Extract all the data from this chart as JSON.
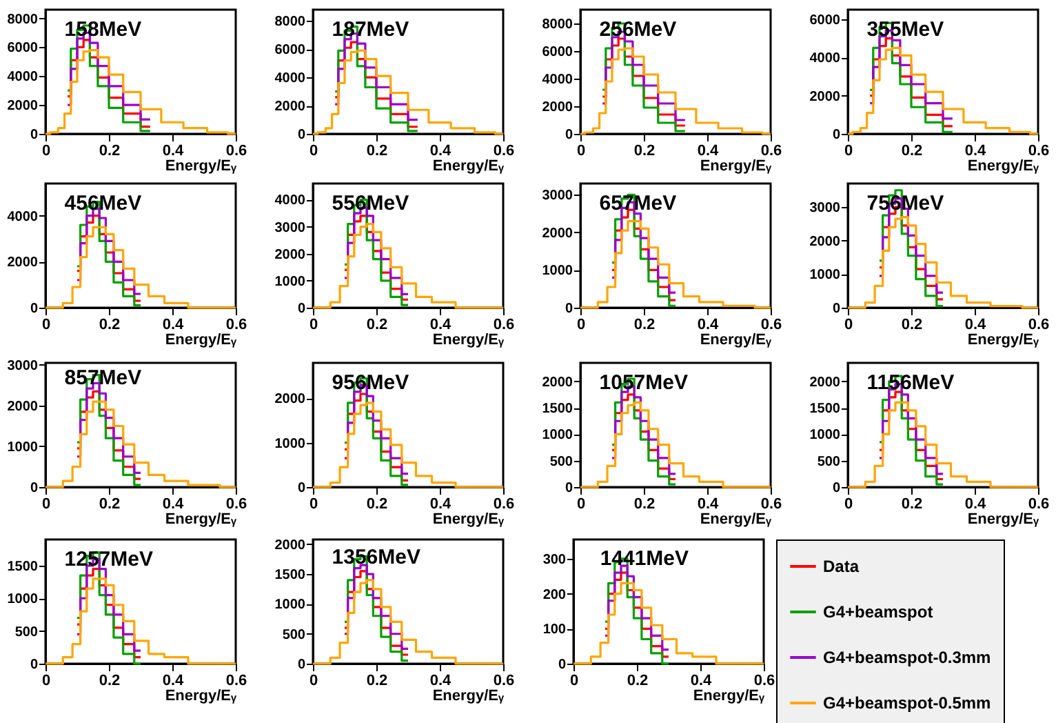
{
  "chart_data": [
    {
      "type": "step",
      "title": "158MeV",
      "xlabel": "Energy/Eᵧ",
      "xlim": [
        0,
        0.6
      ],
      "xticks": [
        0,
        0.2,
        0.4,
        0.6
      ],
      "ylim": [
        0,
        8600
      ],
      "yticks": [
        0,
        2000,
        4000,
        6000,
        8000
      ],
      "marker": "none",
      "x": [
        0.07,
        0.09,
        0.11,
        0.13,
        0.15,
        0.18,
        0.22,
        0.27,
        0.33
      ],
      "series": [
        {
          "color": "#ff0000",
          "values": [
            2600,
            5100,
            6000,
            6500,
            5300,
            3900,
            2500,
            1400,
            500
          ]
        },
        {
          "color": "#00a000",
          "values": [
            3000,
            5900,
            7200,
            7500,
            4700,
            3300,
            1800,
            800,
            200
          ]
        },
        {
          "color": "#9900cc",
          "values": [
            2000,
            4500,
            6600,
            7000,
            6300,
            4700,
            3300,
            2000,
            1000
          ]
        },
        {
          "color": "#ffa500",
          "x": [
            0,
            0.03,
            0.05,
            0.07,
            0.09,
            0.11,
            0.13,
            0.15,
            0.18,
            0.22,
            0.27,
            0.33,
            0.4,
            0.47,
            0.55,
            0.6
          ],
          "values": [
            0,
            100,
            400,
            1400,
            3600,
            5100,
            5700,
            5800,
            5300,
            4100,
            2900,
            1700,
            800,
            400,
            100,
            0
          ]
        }
      ]
    },
    {
      "type": "step",
      "title": "187MeV",
      "xlabel": "Energy/Eᵧ",
      "xlim": [
        0,
        0.6
      ],
      "xticks": [
        0,
        0.2,
        0.4,
        0.6
      ],
      "ylim": [
        0,
        8800
      ],
      "yticks": [
        0,
        2000,
        4000,
        6000,
        8000
      ],
      "marker": "none",
      "x": [
        0.07,
        0.09,
        0.11,
        0.13,
        0.15,
        0.18,
        0.22,
        0.27,
        0.33
      ],
      "series": [
        {
          "color": "#ff0000",
          "values": [
            2600,
            5200,
            6100,
            6500,
            5300,
            4000,
            2500,
            1400,
            500
          ]
        },
        {
          "color": "#00a000",
          "values": [
            3000,
            5900,
            7300,
            7600,
            4800,
            3300,
            1800,
            800,
            200
          ]
        },
        {
          "color": "#9900cc",
          "values": [
            2100,
            4600,
            6700,
            7100,
            6400,
            4700,
            3300,
            2100,
            1000
          ]
        },
        {
          "color": "#ffa500",
          "x": [
            0,
            0.03,
            0.05,
            0.07,
            0.09,
            0.11,
            0.13,
            0.15,
            0.18,
            0.22,
            0.27,
            0.33,
            0.4,
            0.47,
            0.55,
            0.6
          ],
          "values": [
            0,
            100,
            400,
            1400,
            3600,
            5200,
            5800,
            5900,
            5300,
            4100,
            2900,
            1700,
            800,
            400,
            100,
            0
          ]
        }
      ]
    },
    {
      "type": "step",
      "title": "256MeV",
      "xlabel": "Energy/Eᵧ",
      "xlim": [
        0,
        0.6
      ],
      "xticks": [
        0,
        0.2,
        0.4,
        0.6
      ],
      "ylim": [
        0,
        9000
      ],
      "yticks": [
        0,
        2000,
        4000,
        6000,
        8000
      ],
      "marker": "none",
      "x": [
        0.07,
        0.09,
        0.11,
        0.13,
        0.15,
        0.18,
        0.22,
        0.27,
        0.33
      ],
      "series": [
        {
          "color": "#ff0000",
          "values": [
            2700,
            5400,
            6400,
            6900,
            5600,
            4200,
            2600,
            1400,
            600
          ]
        },
        {
          "color": "#00a000",
          "values": [
            3200,
            6200,
            7700,
            8000,
            5000,
            3500,
            1900,
            800,
            200
          ]
        },
        {
          "color": "#9900cc",
          "values": [
            2200,
            4800,
            7000,
            7400,
            6700,
            5000,
            3500,
            2200,
            1000
          ]
        },
        {
          "color": "#ffa500",
          "x": [
            0,
            0.03,
            0.05,
            0.07,
            0.09,
            0.11,
            0.13,
            0.15,
            0.18,
            0.22,
            0.27,
            0.33,
            0.4,
            0.47,
            0.55,
            0.6
          ],
          "values": [
            0,
            100,
            400,
            1500,
            3800,
            5400,
            6100,
            6200,
            5600,
            4300,
            3000,
            1800,
            800,
            400,
            100,
            0
          ]
        }
      ]
    },
    {
      "type": "step",
      "title": "355MeV",
      "xlabel": "Energy/Eᵧ",
      "xlim": [
        0,
        0.6
      ],
      "xticks": [
        0,
        0.2,
        0.4,
        0.6
      ],
      "ylim": [
        0,
        6500
      ],
      "yticks": [
        0,
        2000,
        4000,
        6000
      ],
      "marker": "none",
      "x": [
        0.07,
        0.09,
        0.11,
        0.13,
        0.15,
        0.18,
        0.22,
        0.27,
        0.33
      ],
      "series": [
        {
          "color": "#ff0000",
          "values": [
            2000,
            3900,
            4600,
            5000,
            4100,
            3000,
            1900,
            1000,
            400
          ]
        },
        {
          "color": "#00a000",
          "values": [
            2300,
            4500,
            5600,
            5800,
            3700,
            2600,
            1400,
            600,
            100
          ]
        },
        {
          "color": "#9900cc",
          "values": [
            1600,
            3500,
            5100,
            5400,
            4900,
            3600,
            2600,
            1600,
            800
          ]
        },
        {
          "color": "#ffa500",
          "x": [
            0,
            0.03,
            0.05,
            0.07,
            0.09,
            0.11,
            0.13,
            0.15,
            0.18,
            0.22,
            0.27,
            0.33,
            0.4,
            0.47,
            0.55,
            0.6
          ],
          "values": [
            0,
            100,
            300,
            1100,
            2800,
            3900,
            4400,
            4500,
            4100,
            3100,
            2200,
            1300,
            600,
            300,
            100,
            0
          ]
        }
      ]
    },
    {
      "type": "step",
      "title": "456MeV",
      "xlabel": "Energy/Eᵧ",
      "xlim": [
        0,
        0.6
      ],
      "xticks": [
        0,
        0.2,
        0.4,
        0.6
      ],
      "ylim": [
        0,
        5400
      ],
      "yticks": [
        0,
        2000,
        4000
      ],
      "marker": "none",
      "x": [
        0.1,
        0.12,
        0.14,
        0.16,
        0.18,
        0.2,
        0.23,
        0.26,
        0.3
      ],
      "series": [
        {
          "color": "#ff0000",
          "values": [
            1600,
            3100,
            3700,
            4000,
            3200,
            2400,
            1500,
            800,
            300
          ]
        },
        {
          "color": "#00a000",
          "values": [
            1800,
            3600,
            4400,
            4600,
            2900,
            2000,
            1100,
            500,
            100
          ]
        },
        {
          "color": "#9900cc",
          "values": [
            1200,
            2800,
            4000,
            4300,
            3900,
            2900,
            2000,
            1200,
            600
          ]
        },
        {
          "color": "#ffa500",
          "x": [
            0,
            0.04,
            0.07,
            0.1,
            0.12,
            0.14,
            0.16,
            0.18,
            0.2,
            0.23,
            0.26,
            0.3,
            0.35,
            0.4,
            0.5,
            0.6
          ],
          "values": [
            0,
            0,
            200,
            900,
            2200,
            3100,
            3500,
            3500,
            3200,
            2500,
            1700,
            1000,
            500,
            200,
            0,
            0
          ]
        }
      ]
    },
    {
      "type": "step",
      "title": "556MeV",
      "xlabel": "Energy/Eᵧ",
      "xlim": [
        0,
        0.6
      ],
      "xticks": [
        0,
        0.2,
        0.4,
        0.6
      ],
      "ylim": [
        0,
        4600
      ],
      "yticks": [
        0,
        1000,
        2000,
        3000,
        4000
      ],
      "marker": "none",
      "x": [
        0.1,
        0.12,
        0.14,
        0.16,
        0.18,
        0.2,
        0.23,
        0.26,
        0.3
      ],
      "series": [
        {
          "color": "#ff0000",
          "values": [
            1400,
            2700,
            3200,
            3400,
            2800,
            2100,
            1300,
            700,
            300
          ]
        },
        {
          "color": "#00a000",
          "values": [
            1600,
            3100,
            3800,
            4000,
            2500,
            1800,
            1000,
            400,
            100
          ]
        },
        {
          "color": "#9900cc",
          "values": [
            1100,
            2400,
            3500,
            3700,
            3400,
            2500,
            1800,
            1100,
            500
          ]
        },
        {
          "color": "#ffa500",
          "x": [
            0,
            0.04,
            0.07,
            0.1,
            0.12,
            0.14,
            0.16,
            0.18,
            0.2,
            0.23,
            0.26,
            0.3,
            0.35,
            0.4,
            0.5,
            0.6
          ],
          "values": [
            0,
            0,
            200,
            800,
            1900,
            2700,
            3000,
            3100,
            2800,
            2200,
            1500,
            900,
            400,
            200,
            0,
            0
          ]
        }
      ]
    },
    {
      "type": "step",
      "title": "657MeV",
      "xlabel": "Energy/Eᵧ",
      "xlim": [
        0,
        0.6
      ],
      "xticks": [
        0,
        0.2,
        0.4,
        0.6
      ],
      "ylim": [
        0,
        3300
      ],
      "yticks": [
        0,
        1000,
        2000,
        3000
      ],
      "marker": "none",
      "x": [
        0.1,
        0.12,
        0.14,
        0.16,
        0.18,
        0.2,
        0.23,
        0.26,
        0.3
      ],
      "series": [
        {
          "color": "#ff0000",
          "values": [
            1000,
            2050,
            2400,
            2600,
            2100,
            1550,
            1000,
            550,
            200
          ]
        },
        {
          "color": "#00a000",
          "values": [
            1200,
            2350,
            2900,
            3000,
            1900,
            1300,
            700,
            300,
            50
          ]
        },
        {
          "color": "#9900cc",
          "values": [
            800,
            1800,
            2650,
            2800,
            2500,
            1850,
            1300,
            800,
            400
          ]
        },
        {
          "color": "#ffa500",
          "x": [
            0,
            0.04,
            0.07,
            0.1,
            0.12,
            0.14,
            0.16,
            0.18,
            0.2,
            0.23,
            0.26,
            0.3,
            0.35,
            0.4,
            0.5,
            0.6
          ],
          "values": [
            0,
            0,
            150,
            550,
            1450,
            2050,
            2300,
            2300,
            2100,
            1600,
            1150,
            650,
            300,
            150,
            50,
            0
          ]
        }
      ]
    },
    {
      "type": "step",
      "title": "756MeV",
      "xlabel": "Energy/Eᵧ",
      "xlim": [
        0,
        0.6
      ],
      "xticks": [
        0,
        0.2,
        0.4,
        0.6
      ],
      "ylim": [
        0,
        3700
      ],
      "yticks": [
        0,
        1000,
        2000,
        3000
      ],
      "marker": "none",
      "x": [
        0.1,
        0.12,
        0.14,
        0.16,
        0.18,
        0.2,
        0.23,
        0.26,
        0.3
      ],
      "series": [
        {
          "color": "#ff0000",
          "values": [
            1200,
            2400,
            2800,
            3000,
            2450,
            1800,
            1150,
            650,
            250
          ]
        },
        {
          "color": "#00a000",
          "values": [
            1400,
            2750,
            3350,
            3500,
            2200,
            1550,
            850,
            350,
            50
          ]
        },
        {
          "color": "#9900cc",
          "values": [
            950,
            2100,
            3100,
            3250,
            2950,
            2150,
            1550,
            950,
            450
          ]
        },
        {
          "color": "#ffa500",
          "x": [
            0,
            0.04,
            0.07,
            0.1,
            0.12,
            0.14,
            0.16,
            0.18,
            0.2,
            0.23,
            0.26,
            0.3,
            0.35,
            0.4,
            0.5,
            0.6
          ],
          "values": [
            0,
            0,
            150,
            650,
            1700,
            2400,
            2650,
            2700,
            2450,
            1900,
            1350,
            750,
            350,
            150,
            50,
            0
          ]
        }
      ]
    },
    {
      "type": "step",
      "title": "857MeV",
      "xlabel": "Energy/Eᵧ",
      "xlim": [
        0,
        0.6
      ],
      "xticks": [
        0,
        0.2,
        0.4,
        0.6
      ],
      "ylim": [
        0,
        3050
      ],
      "yticks": [
        0,
        1000,
        2000,
        3000
      ],
      "marker": "none",
      "x": [
        0.1,
        0.12,
        0.14,
        0.16,
        0.18,
        0.2,
        0.23,
        0.26,
        0.3
      ],
      "series": [
        {
          "color": "#ff0000",
          "values": [
            950,
            1850,
            2200,
            2350,
            1900,
            1450,
            900,
            500,
            200
          ]
        },
        {
          "color": "#00a000",
          "values": [
            1100,
            2150,
            2650,
            2750,
            1750,
            1200,
            650,
            300,
            50
          ]
        },
        {
          "color": "#9900cc",
          "values": [
            750,
            1650,
            2420,
            2550,
            2300,
            1700,
            1200,
            750,
            350
          ]
        },
        {
          "color": "#ffa500",
          "x": [
            0,
            0.04,
            0.07,
            0.1,
            0.12,
            0.14,
            0.16,
            0.18,
            0.2,
            0.23,
            0.26,
            0.3,
            0.35,
            0.4,
            0.5,
            0.6
          ],
          "values": [
            0,
            0,
            150,
            500,
            1300,
            1850,
            2100,
            2100,
            1900,
            1500,
            1050,
            600,
            300,
            150,
            50,
            0
          ]
        }
      ]
    },
    {
      "type": "step",
      "title": "956MeV",
      "xlabel": "Energy/Eᵧ",
      "xlim": [
        0,
        0.6
      ],
      "xticks": [
        0,
        0.2,
        0.4,
        0.6
      ],
      "ylim": [
        0,
        2800
      ],
      "yticks": [
        0,
        1000,
        2000
      ],
      "marker": "none",
      "x": [
        0.1,
        0.12,
        0.14,
        0.16,
        0.18,
        0.2,
        0.23,
        0.26,
        0.3
      ],
      "series": [
        {
          "color": "#ff0000",
          "values": [
            850,
            1650,
            1950,
            2100,
            1700,
            1250,
            800,
            450,
            150
          ]
        },
        {
          "color": "#00a000",
          "values": [
            1000,
            1900,
            2350,
            2450,
            1550,
            1100,
            600,
            250,
            50
          ]
        },
        {
          "color": "#9900cc",
          "values": [
            650,
            1450,
            2150,
            2300,
            2050,
            1500,
            1100,
            650,
            300
          ]
        },
        {
          "color": "#ffa500",
          "x": [
            0,
            0.04,
            0.07,
            0.1,
            0.12,
            0.14,
            0.16,
            0.18,
            0.2,
            0.23,
            0.26,
            0.3,
            0.35,
            0.4,
            0.5,
            0.6
          ],
          "values": [
            0,
            0,
            100,
            450,
            1200,
            1650,
            1850,
            1900,
            1700,
            1300,
            950,
            550,
            250,
            100,
            0,
            0
          ]
        }
      ]
    },
    {
      "type": "step",
      "title": "1057MeV",
      "xlabel": "Energy/Eᵧ",
      "xlim": [
        0,
        0.6
      ],
      "xticks": [
        0,
        0.2,
        0.4,
        0.6
      ],
      "ylim": [
        0,
        2350
      ],
      "yticks": [
        0,
        500,
        1000,
        1500,
        2000
      ],
      "marker": "none",
      "x": [
        0.1,
        0.12,
        0.14,
        0.16,
        0.18,
        0.2,
        0.23,
        0.26,
        0.3
      ],
      "series": [
        {
          "color": "#ff0000",
          "values": [
            700,
            1400,
            1650,
            1750,
            1450,
            1050,
            700,
            350,
            150
          ]
        },
        {
          "color": "#00a000",
          "values": [
            800,
            1600,
            1950,
            2050,
            1300,
            900,
            500,
            200,
            50
          ]
        },
        {
          "color": "#9900cc",
          "values": [
            550,
            1250,
            1800,
            1900,
            1700,
            1250,
            900,
            550,
            250
          ]
        },
        {
          "color": "#ffa500",
          "x": [
            0,
            0.04,
            0.07,
            0.1,
            0.12,
            0.14,
            0.16,
            0.18,
            0.2,
            0.23,
            0.26,
            0.3,
            0.35,
            0.4,
            0.5,
            0.6
          ],
          "values": [
            0,
            0,
            100,
            400,
            1000,
            1400,
            1550,
            1600,
            1450,
            1100,
            800,
            450,
            200,
            100,
            0,
            0
          ]
        }
      ]
    },
    {
      "type": "step",
      "title": "1156MeV",
      "xlabel": "Energy/Eᵧ",
      "xlim": [
        0,
        0.6
      ],
      "xticks": [
        0,
        0.2,
        0.4,
        0.6
      ],
      "ylim": [
        0,
        2350
      ],
      "yticks": [
        0,
        500,
        1000,
        1500,
        2000
      ],
      "marker": "none",
      "x": [
        0.1,
        0.12,
        0.14,
        0.16,
        0.18,
        0.2,
        0.23,
        0.26,
        0.3
      ],
      "series": [
        {
          "color": "#ff0000",
          "values": [
            700,
            1450,
            1700,
            1800,
            1450,
            1100,
            700,
            400,
            150
          ]
        },
        {
          "color": "#00a000",
          "values": [
            850,
            1650,
            2000,
            2100,
            1300,
            900,
            500,
            200,
            50
          ]
        },
        {
          "color": "#9900cc",
          "values": [
            550,
            1250,
            1850,
            1950,
            1750,
            1300,
            900,
            550,
            250
          ]
        },
        {
          "color": "#ffa500",
          "x": [
            0,
            0.04,
            0.07,
            0.1,
            0.12,
            0.14,
            0.16,
            0.18,
            0.2,
            0.23,
            0.26,
            0.3,
            0.35,
            0.4,
            0.5,
            0.6
          ],
          "values": [
            0,
            0,
            100,
            400,
            1000,
            1450,
            1600,
            1600,
            1450,
            1150,
            800,
            450,
            200,
            100,
            0,
            0
          ]
        }
      ]
    },
    {
      "type": "step",
      "title": "1257MeV",
      "xlabel": "Energy/Eᵧ",
      "xlim": [
        0,
        0.6
      ],
      "xticks": [
        0,
        0.2,
        0.4,
        0.6
      ],
      "ylim": [
        0,
        1900
      ],
      "yticks": [
        0,
        500,
        1000,
        1500
      ],
      "marker": "none",
      "x": [
        0.1,
        0.12,
        0.14,
        0.16,
        0.18,
        0.2,
        0.23,
        0.26,
        0.3
      ],
      "series": [
        {
          "color": "#ff0000",
          "values": [
            600,
            1150,
            1350,
            1450,
            1200,
            900,
            550,
            300,
            100
          ]
        },
        {
          "color": "#00a000",
          "values": [
            700,
            1350,
            1650,
            1700,
            1050,
            750,
            400,
            150,
            0
          ]
        },
        {
          "color": "#9900cc",
          "values": [
            450,
            1000,
            1500,
            1600,
            1450,
            1050,
            750,
            450,
            200
          ]
        },
        {
          "color": "#ffa500",
          "x": [
            0,
            0.04,
            0.07,
            0.1,
            0.12,
            0.14,
            0.16,
            0.18,
            0.2,
            0.23,
            0.26,
            0.3,
            0.35,
            0.4,
            0.5,
            0.6
          ],
          "values": [
            0,
            0,
            100,
            300,
            800,
            1150,
            1300,
            1300,
            1200,
            900,
            650,
            350,
            150,
            100,
            0,
            0
          ]
        }
      ]
    },
    {
      "type": "step",
      "title": "1356MeV",
      "xlabel": "Energy/Eᵧ",
      "xlim": [
        0,
        0.6
      ],
      "xticks": [
        0,
        0.2,
        0.4,
        0.6
      ],
      "ylim": [
        0,
        2080
      ],
      "yticks": [
        0,
        500,
        1000,
        1500,
        2000
      ],
      "marker": "none",
      "x": [
        0.1,
        0.12,
        0.14,
        0.16,
        0.18,
        0.2,
        0.23,
        0.26,
        0.3
      ],
      "series": [
        {
          "color": "#ff0000",
          "values": [
            600,
            1200,
            1450,
            1550,
            1250,
            950,
            600,
            300,
            150
          ]
        },
        {
          "color": "#00a000",
          "values": [
            700,
            1400,
            1750,
            1800,
            1150,
            800,
            450,
            200,
            50
          ]
        },
        {
          "color": "#9900cc",
          "values": [
            500,
            1100,
            1600,
            1650,
            1500,
            1100,
            800,
            500,
            250
          ]
        },
        {
          "color": "#ffa500",
          "x": [
            0,
            0.04,
            0.07,
            0.1,
            0.12,
            0.14,
            0.16,
            0.18,
            0.2,
            0.23,
            0.26,
            0.3,
            0.35,
            0.4,
            0.5,
            0.6
          ],
          "values": [
            0,
            0,
            100,
            350,
            850,
            1200,
            1350,
            1400,
            1250,
            950,
            700,
            400,
            200,
            100,
            0,
            0
          ]
        }
      ]
    },
    {
      "type": "step",
      "title": "1441MeV",
      "xlabel": "Energy/Eᵧ",
      "xlim": [
        0,
        0.6
      ],
      "xticks": [
        0,
        0.2,
        0.4,
        0.6
      ],
      "ylim": [
        0,
        355
      ],
      "yticks": [
        0,
        100,
        200,
        300
      ],
      "marker": "none",
      "legend": "right",
      "x": [
        0.1,
        0.12,
        0.14,
        0.16,
        0.18,
        0.2,
        0.23,
        0.26,
        0.3
      ],
      "series": [
        {
          "name": "Data",
          "color": "#ff0000",
          "values": [
            100,
            200,
            240,
            260,
            210,
            160,
            100,
            50,
            20
          ]
        },
        {
          "name": "G4+beamspot",
          "color": "#00a000",
          "values": [
            120,
            230,
            290,
            300,
            190,
            130,
            70,
            30,
            0
          ]
        },
        {
          "name": "G4+beamspot-0.3mm",
          "color": "#9900cc",
          "values": [
            80,
            180,
            260,
            280,
            250,
            190,
            130,
            80,
            40
          ]
        },
        {
          "name": "G4+beamspot-0.5mm",
          "color": "#ffa500",
          "x": [
            0,
            0.04,
            0.07,
            0.1,
            0.12,
            0.14,
            0.16,
            0.18,
            0.2,
            0.23,
            0.26,
            0.3,
            0.35,
            0.4,
            0.5,
            0.6
          ],
          "values": [
            0,
            0,
            20,
            60,
            140,
            200,
            230,
            230,
            210,
            160,
            110,
            70,
            30,
            20,
            0,
            0
          ]
        }
      ]
    }
  ]
}
